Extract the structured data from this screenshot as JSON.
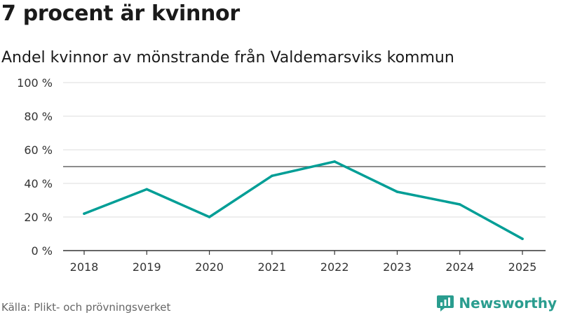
{
  "header": {
    "title": "7 procent är kvinnor",
    "subtitle": "Andel kvinnor av mönstrande från Valdemarsviks kommun"
  },
  "footer": {
    "source": "Källa: Plikt- och prövningsverket",
    "brand": "Newsworthy"
  },
  "colors": {
    "line": "#009e96",
    "reference_line": "#666666",
    "grid": "#dddddd",
    "brand": "#2a9d8f"
  },
  "chart_data": {
    "type": "line",
    "title": "7 procent är kvinnor",
    "subtitle": "Andel kvinnor av mönstrande från Valdemarsviks kommun",
    "x": [
      "2018",
      "2019",
      "2020",
      "2021",
      "2022",
      "2023",
      "2024",
      "2025"
    ],
    "series": [
      {
        "values": [
          22,
          36.5,
          20,
          44.5,
          53,
          35,
          27.5,
          7
        ]
      }
    ],
    "reference_line": 50,
    "ylim": [
      0,
      100
    ],
    "yticks": [
      0,
      20,
      40,
      60,
      80,
      100
    ],
    "ytick_labels": [
      "0 %",
      "20 %",
      "40 %",
      "60 %",
      "80 %",
      "100 %"
    ],
    "grid": true,
    "legend": "none"
  }
}
